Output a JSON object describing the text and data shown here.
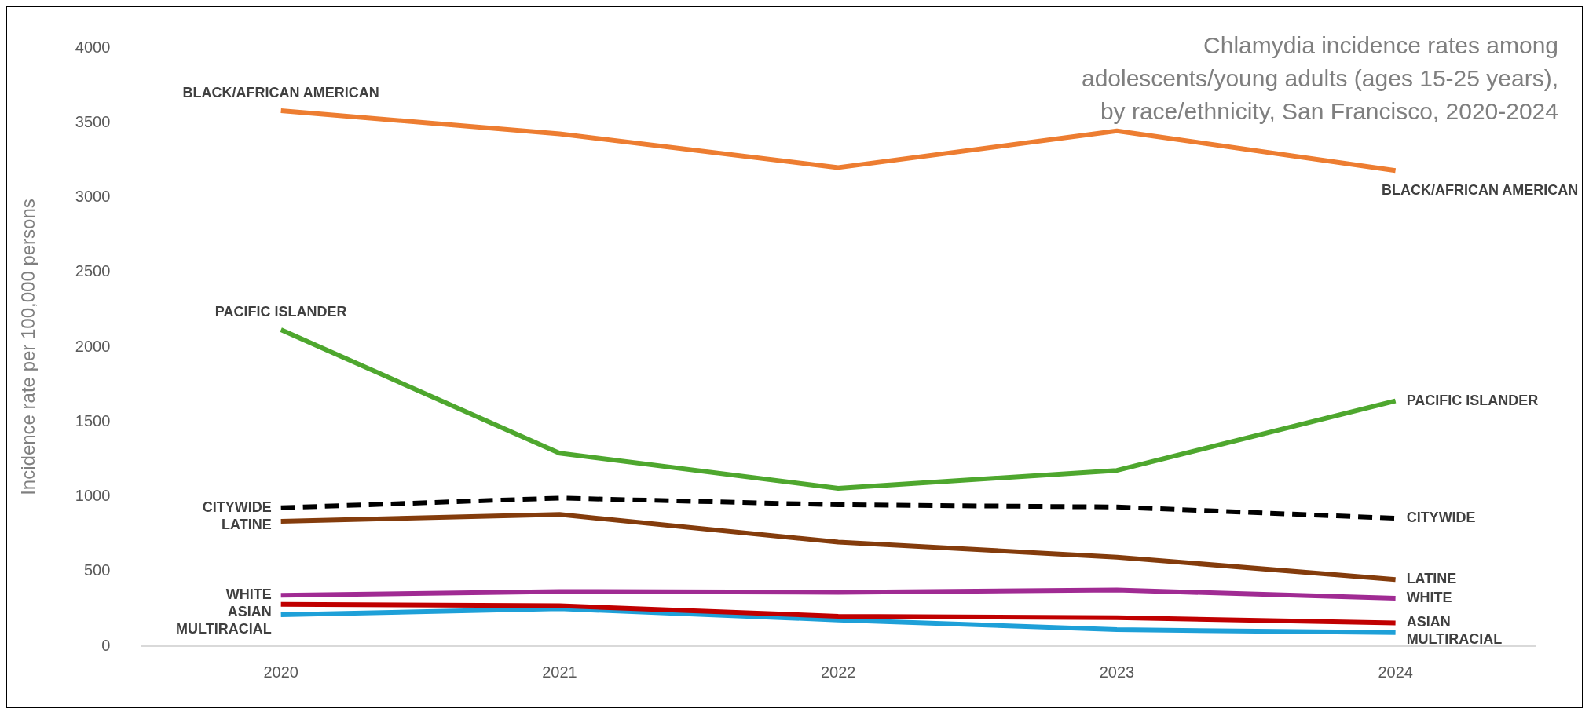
{
  "chart_data": {
    "type": "line",
    "title": "Chlamydia incidence rates among adolescents/young adults (ages 15-25 years), by race/ethnicity, San Francisco, 2020-2024",
    "ylabel": "Incidence rate per 100,000 persons",
    "categories": [
      "2020",
      "2021",
      "2022",
      "2023",
      "2024"
    ],
    "series": [
      {
        "name": "BLACK/AFRICAN AMERICAN",
        "color": "#ed7d31",
        "values": [
          3580,
          3425,
          3200,
          3445,
          3180
        ]
      },
      {
        "name": "PACIFIC ISLANDER",
        "color": "#4ea72e",
        "values": [
          2115,
          1290,
          1055,
          1175,
          1640
        ]
      },
      {
        "name": "CITYWIDE",
        "color": "#000000",
        "line_style": "dashed",
        "values": [
          925,
          990,
          945,
          930,
          855
        ]
      },
      {
        "name": "LATINE",
        "color": "#843c0c",
        "values": [
          835,
          880,
          695,
          595,
          445
        ]
      },
      {
        "name": "WHITE",
        "color": "#a02b93",
        "values": [
          340,
          365,
          360,
          375,
          320
        ]
      },
      {
        "name": "ASIAN",
        "color": "#c00000",
        "values": [
          280,
          270,
          200,
          190,
          155
        ]
      },
      {
        "name": "MULTIRACIAL",
        "color": "#1ea0d8",
        "values": [
          210,
          250,
          175,
          110,
          90
        ]
      }
    ],
    "ylim": [
      0,
      4000
    ],
    "yticks": [
      0,
      500,
      1000,
      1500,
      2000,
      2500,
      3000,
      3500,
      4000
    ],
    "grid": false,
    "legend": false,
    "marker": "none",
    "line_style": "solid"
  }
}
